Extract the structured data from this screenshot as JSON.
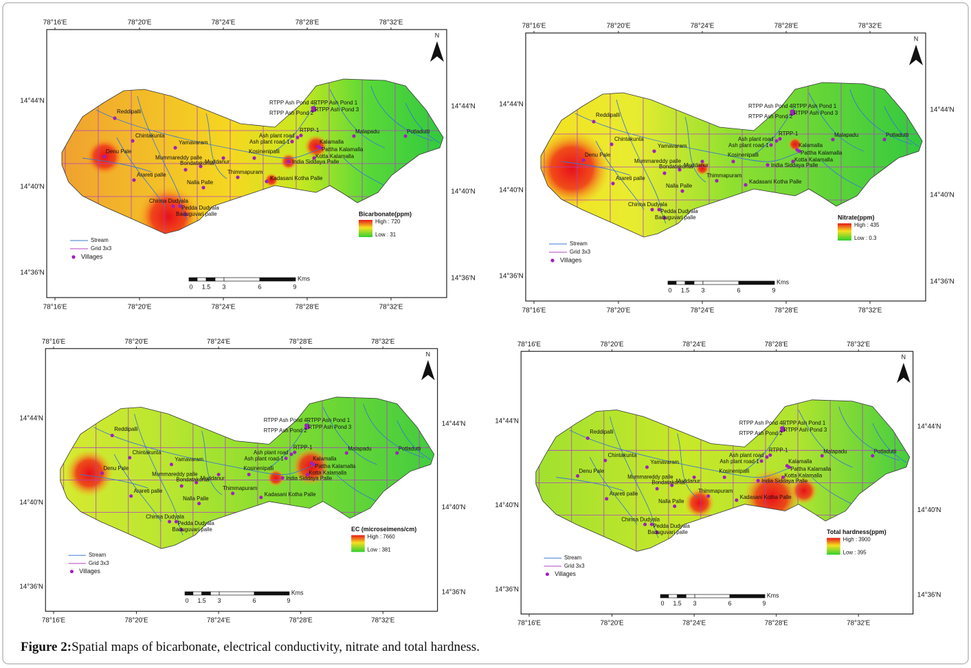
{
  "caption": {
    "label": "Figure 2:",
    "text": "Spatial maps of bicarbonate, electrical conductivity, nitrate and total hardness."
  },
  "lon_labels": [
    "78°16'E",
    "78°20'E",
    "78°24'E",
    "78°28'E",
    "78°32'E"
  ],
  "lat_labels": [
    "14°44'N",
    "14°40'N",
    "14°36'N"
  ],
  "north": "N",
  "legend": [
    "Stream",
    "Grid 3x3",
    "Villages"
  ],
  "scale": {
    "ticks": [
      "0",
      "1.5",
      "3",
      "6",
      "9"
    ],
    "unit": "Kms"
  },
  "villages": [
    "Reddipalli",
    "Chintakunta",
    "Denu Pale",
    "Yamavaram",
    "Mummareddy palle",
    "Bondatakonta",
    "Muddanur",
    "Arareti palle",
    "Nalla Palle",
    "Chinna Dudyala",
    "Pedda Dudyala",
    "Baduguvari palle",
    "Thimmapuram",
    "Kadasani Kotha Palle",
    "Kosinenipalli",
    "Ash plant road",
    "Ash plant road-1",
    "RTPP-1",
    "Kalamalla",
    "Pattha Kalamalla",
    "Kotta Kalamalla",
    "India Siddaya Palle",
    "Malapadu",
    "Potladutti",
    "RTPP Ash Pond 4",
    "RTPP Ash Pond 1",
    "RTPP Ash Pond 2",
    "RTPP Ash Pond 3"
  ],
  "panels": [
    {
      "title": "Bicarbonate(ppm)",
      "high": "High : 720",
      "low": "Low : 31"
    },
    {
      "title": "Nitrate(ppm)",
      "high": "High : 435",
      "low": "Low : 0.3"
    },
    {
      "title": "EC (microseimens/cm)",
      "high": "High : 7660",
      "low": "Low : 381"
    },
    {
      "title": "Total hardness(ppm)",
      "high": "High : 3900",
      "low": "Low : 395"
    }
  ]
}
